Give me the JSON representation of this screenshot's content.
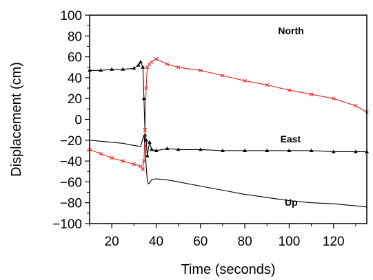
{
  "chart_data": {
    "type": "line",
    "xlabel": "Time (seconds)",
    "ylabel": "Displacement (cm)",
    "xlim": [
      10,
      135
    ],
    "ylim": [
      -100,
      100
    ],
    "x_ticks": [
      20,
      40,
      60,
      80,
      100,
      120
    ],
    "x_tick_labels": [
      "20",
      "40",
      "60",
      "80",
      "100",
      "120"
    ],
    "y_ticks": [
      100,
      80,
      60,
      40,
      20,
      0,
      -20,
      -40,
      -60,
      -80,
      -100
    ],
    "y_tick_labels": [
      "100",
      "80",
      "60",
      "40",
      "20",
      "0",
      "−20",
      "−40",
      "−60",
      "−80",
      "−100"
    ],
    "grid": false,
    "series": [
      {
        "name": "North",
        "color": "#000000",
        "marker": "triangle",
        "x": [
          10,
          15,
          20,
          25,
          30,
          32,
          33,
          34,
          34.5,
          35,
          35.5,
          36,
          37,
          38,
          40,
          45,
          50,
          60,
          70,
          80,
          90,
          100,
          110,
          120,
          130,
          135
        ],
        "y": [
          47,
          47,
          48,
          48,
          49,
          52,
          55,
          50,
          20,
          -15,
          -20,
          -35,
          -22,
          -29,
          -30,
          -28,
          -29,
          -29,
          -30,
          -30,
          -30,
          -30,
          -30,
          -31,
          -31,
          -31
        ]
      },
      {
        "name": "East",
        "color": "#e52222",
        "marker": "x",
        "x": [
          10,
          15,
          20,
          25,
          30,
          33,
          34,
          34.5,
          35,
          35.5,
          36,
          37,
          38,
          40,
          45,
          50,
          60,
          70,
          80,
          90,
          100,
          110,
          120,
          130,
          135
        ],
        "y": [
          -29,
          -33,
          -37,
          -40,
          -43,
          -45,
          -48,
          -40,
          -10,
          30,
          50,
          53,
          55,
          58,
          53,
          50,
          47,
          42,
          37,
          33,
          28,
          24,
          20,
          13,
          7
        ]
      },
      {
        "name": "Up",
        "color": "#000000",
        "marker": "none",
        "x": [
          10,
          15,
          20,
          25,
          30,
          33,
          34.5,
          35,
          35.5,
          36,
          36.5,
          37,
          38,
          40,
          45,
          50,
          60,
          70,
          80,
          90,
          100,
          110,
          120,
          130,
          135
        ],
        "y": [
          -20,
          -21,
          -22,
          -23,
          -25,
          -26,
          -15,
          -25,
          -45,
          -58,
          -62,
          -61,
          -58,
          -57,
          -58,
          -60,
          -64,
          -68,
          -72,
          -75,
          -78,
          -80,
          -81,
          -83,
          -84
        ]
      }
    ],
    "annotations": [
      {
        "text": "North",
        "x": 95,
        "y": 82
      },
      {
        "text": "East",
        "x": 96,
        "y": -22
      },
      {
        "text": "Up",
        "x": 98,
        "y": -83
      }
    ]
  }
}
